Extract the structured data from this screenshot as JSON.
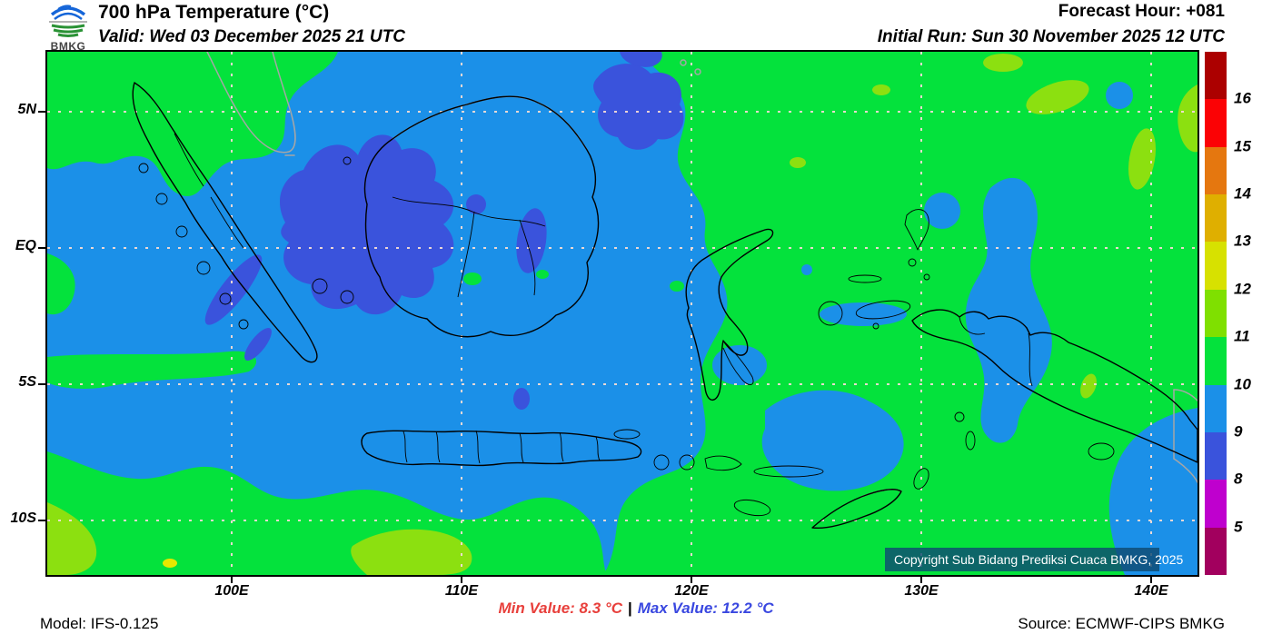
{
  "header": {
    "logo_text": "BMKG",
    "title": "700 hPa Temperature (°C)",
    "valid": "Valid: Wed 03 December 2025 21 UTC",
    "forecast_hour": "Forecast Hour: +081",
    "initial_run": "Initial Run: Sun 30 November 2025 12 UTC"
  },
  "map": {
    "lat_labels": [
      "5N",
      "EQ",
      "5S",
      "10S"
    ],
    "lon_labels": [
      "100E",
      "110E",
      "120E",
      "130E",
      "140E"
    ],
    "copyright": "Copyright Sub Bidang Prediksi Cuaca BMKG, 2025",
    "field_colors": {
      "temp_9_10": "#1b90e8",
      "temp_8_9": "#3a53dc",
      "temp_10_11": "#04e23c",
      "temp_11_12": "#8ce010",
      "temp_12_13": "#e6e800"
    }
  },
  "colorbar": {
    "boundary_labels": [
      "16",
      "15",
      "14",
      "13",
      "12",
      "11",
      "10",
      "9",
      "8",
      "5"
    ],
    "segment_colors": [
      "#ac0000",
      "#fb0205",
      "#e5770f",
      "#dfaf00",
      "#d7e100",
      "#7fe000",
      "#04e23c",
      "#1b90e8",
      "#3a53dc",
      "#bf00ce",
      "#a2005e"
    ]
  },
  "footer": {
    "model": "Model: IFS-0.125",
    "min_value": "Min Value: 8.3 °C",
    "separator": "|",
    "max_value": "Max Value: 12.2 °C",
    "source": "Source: ECMWF-CIPS BMKG",
    "min_color": "#e8403c",
    "max_color": "#3a48e0"
  }
}
